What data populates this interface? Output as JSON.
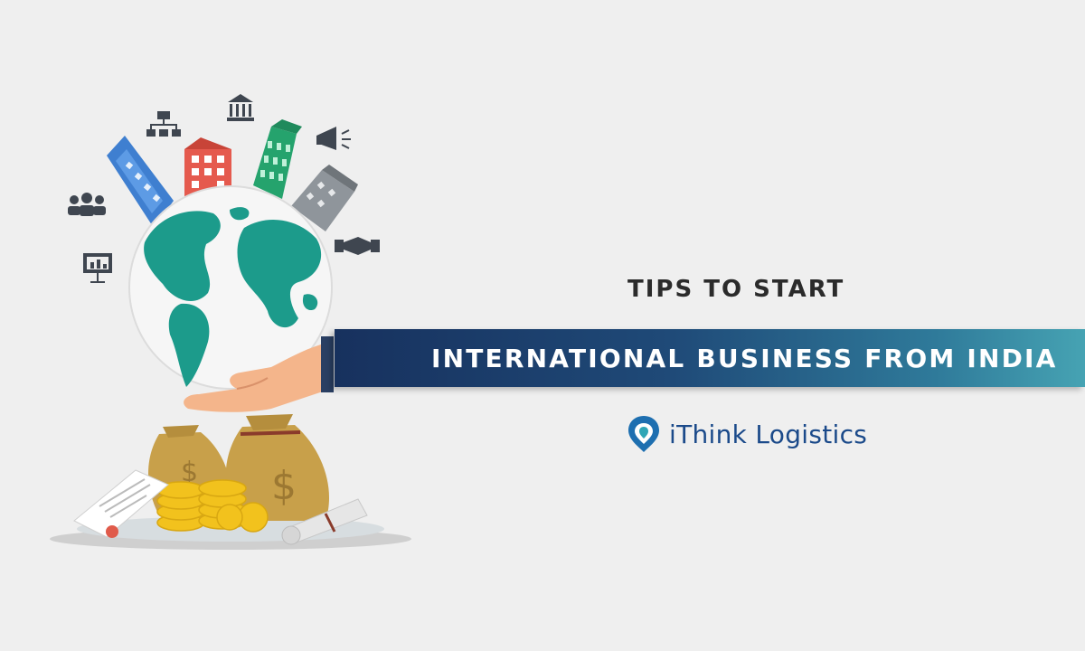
{
  "headline": {
    "subtitle": "TIPS TO START",
    "banner_text": "INTERNATIONAL BUSINESS FROM INDIA"
  },
  "brand": {
    "name": "iThink Logistics"
  },
  "colors": {
    "background": "#efefef",
    "banner_start": "#17315e",
    "banner_end": "#46a3b3",
    "globe_land": "#1c9b8b",
    "brand_blue": "#1b4a8a"
  },
  "icons": [
    "org-chart-icon",
    "bank-icon",
    "megaphone-icon",
    "team-icon",
    "handshake-icon",
    "presentation-icon"
  ]
}
